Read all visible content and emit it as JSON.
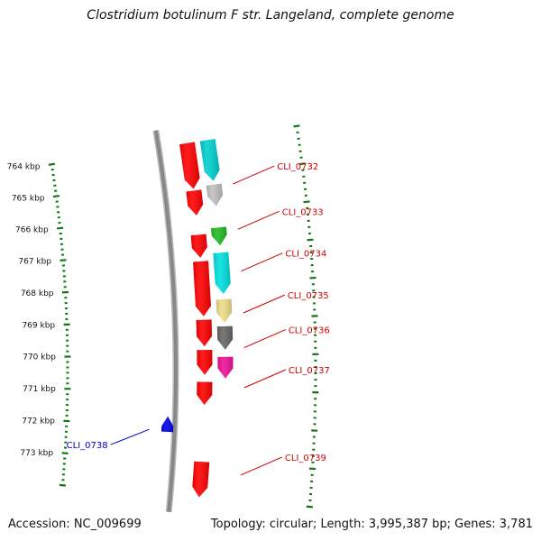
{
  "title": "Clostridium botulinum F str. Langeland, complete genome",
  "footer": {
    "accession": "Accession: NC_009699",
    "summary": "Topology: circular; Length: 3,995,387 bp; Genes: 3,781"
  },
  "colors": {
    "backbone": "#888888",
    "tick": "#117711",
    "label_red": "#cc0000",
    "label_blue": "#0000cc"
  },
  "scale_ticks": [
    "764 kbp",
    "765 kbp",
    "766 kbp",
    "767 kbp",
    "768 kbp",
    "769 kbp",
    "770 kbp",
    "771 kbp",
    "772 kbp",
    "773 kbp"
  ],
  "features": [
    {
      "track": "outer",
      "color": "#00d0d0",
      "from": 0,
      "to": 0.115
    },
    {
      "track": "outer",
      "color": "#c0c0c0",
      "from": 0.125,
      "to": 0.185
    },
    {
      "track": "outer",
      "color": "#22bb22",
      "from": 0.245,
      "to": 0.295
    },
    {
      "track": "outer",
      "color": "#00e0e0",
      "from": 0.315,
      "to": 0.43
    },
    {
      "track": "outer",
      "color": "#eedd88",
      "from": 0.445,
      "to": 0.51
    },
    {
      "track": "outer",
      "color": "#666666",
      "from": 0.52,
      "to": 0.585
    },
    {
      "track": "outer",
      "color": "#ee1199",
      "from": 0.605,
      "to": 0.665
    },
    {
      "track": "inner",
      "color": "#ff0000",
      "from": 0,
      "to": 0.13
    },
    {
      "track": "inner",
      "color": "#ff0000",
      "from": 0.135,
      "to": 0.205
    },
    {
      "track": "inner",
      "color": "#ff0000",
      "from": 0.26,
      "to": 0.325
    },
    {
      "track": "inner",
      "color": "#ff0000",
      "from": 0.335,
      "to": 0.49
    },
    {
      "track": "inner",
      "color": "#ff0000",
      "from": 0.5,
      "to": 0.575
    },
    {
      "track": "inner",
      "color": "#ff0000",
      "from": 0.585,
      "to": 0.655
    },
    {
      "track": "inner",
      "color": "#ff0000",
      "from": 0.675,
      "to": 0.74
    },
    {
      "track": "inner",
      "color": "#ff0000",
      "from": 0.9,
      "to": 1
    },
    {
      "track": "reverse",
      "color": "#0000ee",
      "from": 0.775,
      "to": 0.82
    }
  ],
  "gene_labels": [
    {
      "text": "CLI_0732",
      "color": "#cc0000"
    },
    {
      "text": "CLI_0733",
      "color": "#cc0000"
    },
    {
      "text": "CLI_0734",
      "color": "#cc0000"
    },
    {
      "text": "CLI_0735",
      "color": "#cc0000"
    },
    {
      "text": "CLI_0736",
      "color": "#cc0000"
    },
    {
      "text": "CLI_0737",
      "color": "#cc0000"
    },
    {
      "text": "CLI_0738",
      "color": "#0000cc"
    },
    {
      "text": "CLI_0739",
      "color": "#cc0000"
    }
  ]
}
